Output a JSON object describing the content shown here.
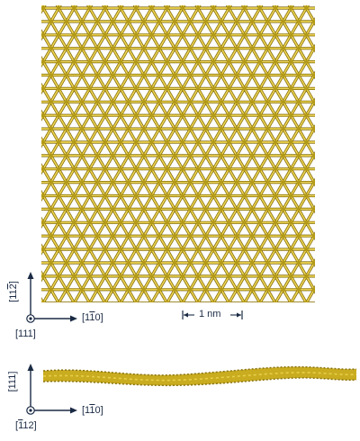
{
  "figure": {
    "top_view": {
      "axis_y_label": {
        "pre": "[11",
        "bar": "2",
        "post": "]"
      },
      "axis_x_label": {
        "pre": "[1",
        "bar": "1",
        "post": "0]"
      },
      "axis_out_label": "[111]",
      "scale_bar_label": "1 nm",
      "atom_color": "#d4b626",
      "bond_color": "#b39a18"
    },
    "side_view": {
      "axis_y_label": "[111]",
      "axis_x_label": {
        "pre": "[1",
        "bar": "1",
        "post": "0]"
      },
      "axis_out_label": {
        "pre": "[",
        "bar": "1",
        "mid": "",
        "bar2": "1",
        "post": "2]"
      }
    },
    "axis_color": "#1a2a44"
  }
}
